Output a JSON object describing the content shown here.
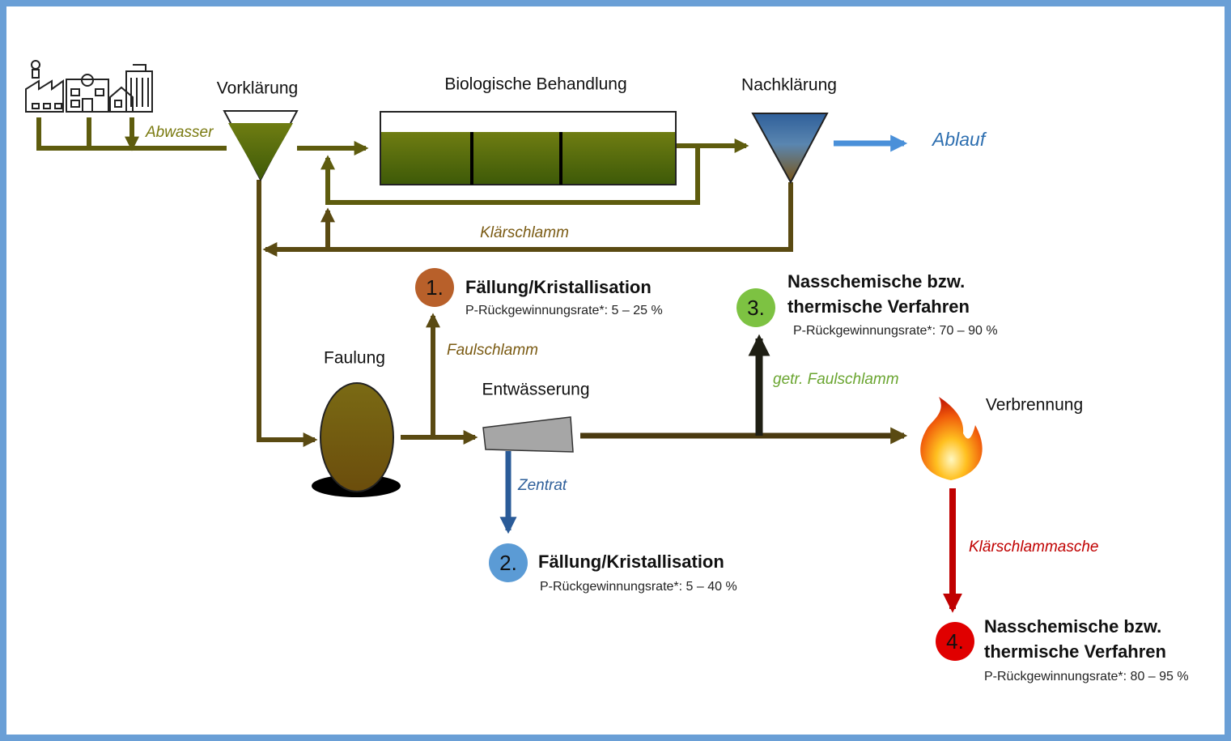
{
  "stages": {
    "pretreatment": "Vorklärung",
    "biological": "Biologische Behandlung",
    "secondary": "Nachklärung",
    "digestion": "Faulung",
    "dewatering": "Entwässerung",
    "incineration": "Verbrennung"
  },
  "flows": {
    "wastewater": "Abwasser",
    "effluent": "Ablauf",
    "sewage_sludge": "Klärschlamm",
    "digested_sludge": "Faulschlamm",
    "centrate": "Zentrat",
    "dried_sludge": "getr. Faulschlamm",
    "ash": "Klärschlammasche"
  },
  "recovery": [
    {
      "number": "1.",
      "title": [
        "Fällung/Kristallisation"
      ],
      "rate": "P-Rückgewinnungsrate*: 5 – 25 %"
    },
    {
      "number": "2.",
      "title": [
        "Fällung/Kristallisation"
      ],
      "rate": "P-Rückgewinnungsrate*: 5 – 40 %"
    },
    {
      "number": "3.",
      "title": [
        "Nasschemische bzw.",
        "thermische Verfahren"
      ],
      "rate": "P-Rückgewinnungsrate*: 70 – 90 %"
    },
    {
      "number": "4.",
      "title": [
        "Nasschemische bzw.",
        "thermische Verfahren"
      ],
      "rate": "P-Rückgewinnungsrate*: 80 – 95 %"
    }
  ]
}
